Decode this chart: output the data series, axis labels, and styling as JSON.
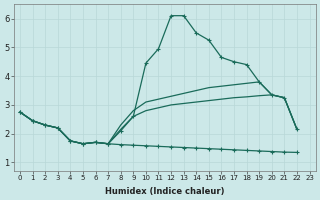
{
  "xlabel": "Humidex (Indice chaleur)",
  "bg_color": "#cce8e8",
  "grid_color": "#b8d8d8",
  "line_color": "#1a6b5a",
  "ylim": [
    0.7,
    6.5
  ],
  "xlim": [
    -0.5,
    23.5
  ],
  "yticks": [
    1,
    2,
    3,
    4,
    5,
    6
  ],
  "xticks": [
    0,
    1,
    2,
    3,
    4,
    5,
    6,
    7,
    8,
    9,
    10,
    11,
    12,
    13,
    14,
    15,
    16,
    17,
    18,
    19,
    20,
    21,
    22,
    23
  ],
  "line1_x": [
    0,
    1,
    2,
    3,
    4,
    5,
    6,
    7,
    8,
    9,
    10,
    11,
    12,
    13,
    14,
    15,
    16,
    17,
    18,
    19,
    20,
    21,
    22
  ],
  "line1_y": [
    2.75,
    2.45,
    2.3,
    2.2,
    1.75,
    1.65,
    1.7,
    1.65,
    2.1,
    2.6,
    4.45,
    4.95,
    6.1,
    6.1,
    5.5,
    5.25,
    4.65,
    4.5,
    4.4,
    3.8,
    3.35,
    3.25,
    2.15
  ],
  "line2_x": [
    0,
    1,
    2,
    3,
    4,
    5,
    6,
    7,
    8,
    9,
    10,
    11,
    12,
    13,
    14,
    15,
    16,
    17,
    18,
    19,
    20,
    21,
    22
  ],
  "line2_y": [
    2.75,
    2.45,
    2.3,
    2.2,
    1.75,
    1.65,
    1.7,
    1.65,
    2.3,
    2.8,
    3.1,
    3.2,
    3.3,
    3.4,
    3.5,
    3.6,
    3.65,
    3.7,
    3.75,
    3.8,
    3.35,
    3.25,
    2.15
  ],
  "line3_x": [
    0,
    1,
    2,
    3,
    4,
    5,
    6,
    7,
    8,
    9,
    10,
    11,
    12,
    13,
    14,
    15,
    16,
    17,
    18,
    19,
    20,
    21,
    22
  ],
  "line3_y": [
    2.75,
    2.45,
    2.3,
    2.2,
    1.75,
    1.65,
    1.7,
    1.65,
    2.15,
    2.6,
    2.8,
    2.9,
    3.0,
    3.05,
    3.1,
    3.15,
    3.2,
    3.25,
    3.28,
    3.32,
    3.35,
    3.25,
    2.15
  ],
  "line4_x": [
    0,
    1,
    2,
    3,
    4,
    5,
    6,
    7,
    8,
    9,
    10,
    11,
    12,
    13,
    14,
    15,
    16,
    17,
    18,
    19,
    20,
    21,
    22
  ],
  "line4_y": [
    2.75,
    2.45,
    2.3,
    2.2,
    1.75,
    1.65,
    1.7,
    1.65,
    1.62,
    1.6,
    1.58,
    1.56,
    1.54,
    1.52,
    1.5,
    1.48,
    1.46,
    1.44,
    1.42,
    1.4,
    1.38,
    1.36,
    1.35
  ]
}
